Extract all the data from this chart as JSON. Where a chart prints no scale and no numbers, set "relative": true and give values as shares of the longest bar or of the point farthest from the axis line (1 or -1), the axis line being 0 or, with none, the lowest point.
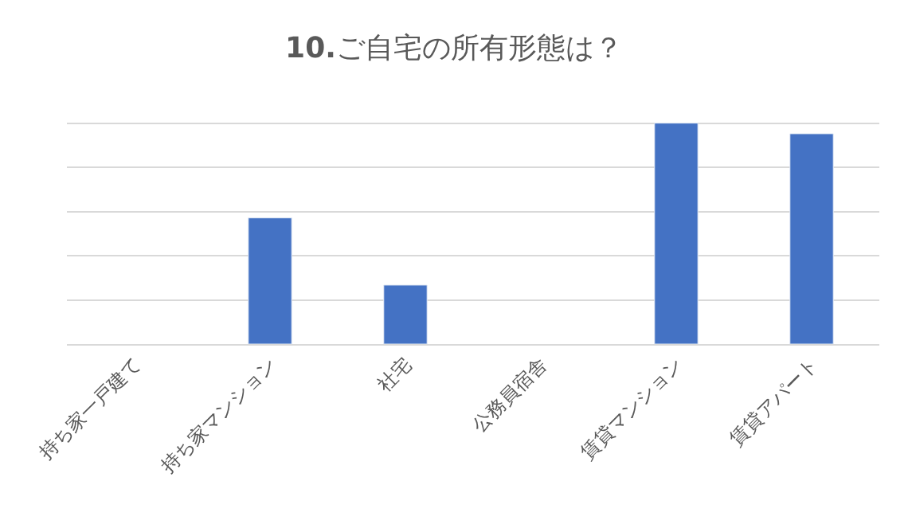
{
  "chart_data": {
    "type": "bar",
    "title": "10.ご自宅の所有形態は？",
    "relative": true,
    "grid": "y",
    "legend": false,
    "categories": [
      "持ち家一戸建て",
      "持ち家マンション",
      "社宅",
      "公務員宿舎",
      "賃貸マンション",
      "賃貸アパート"
    ],
    "series": [
      {
        "color": "#4472c4",
        "values": [
          null,
          0.571,
          0.267,
          null,
          1,
          0.952
        ]
      }
    ]
  }
}
